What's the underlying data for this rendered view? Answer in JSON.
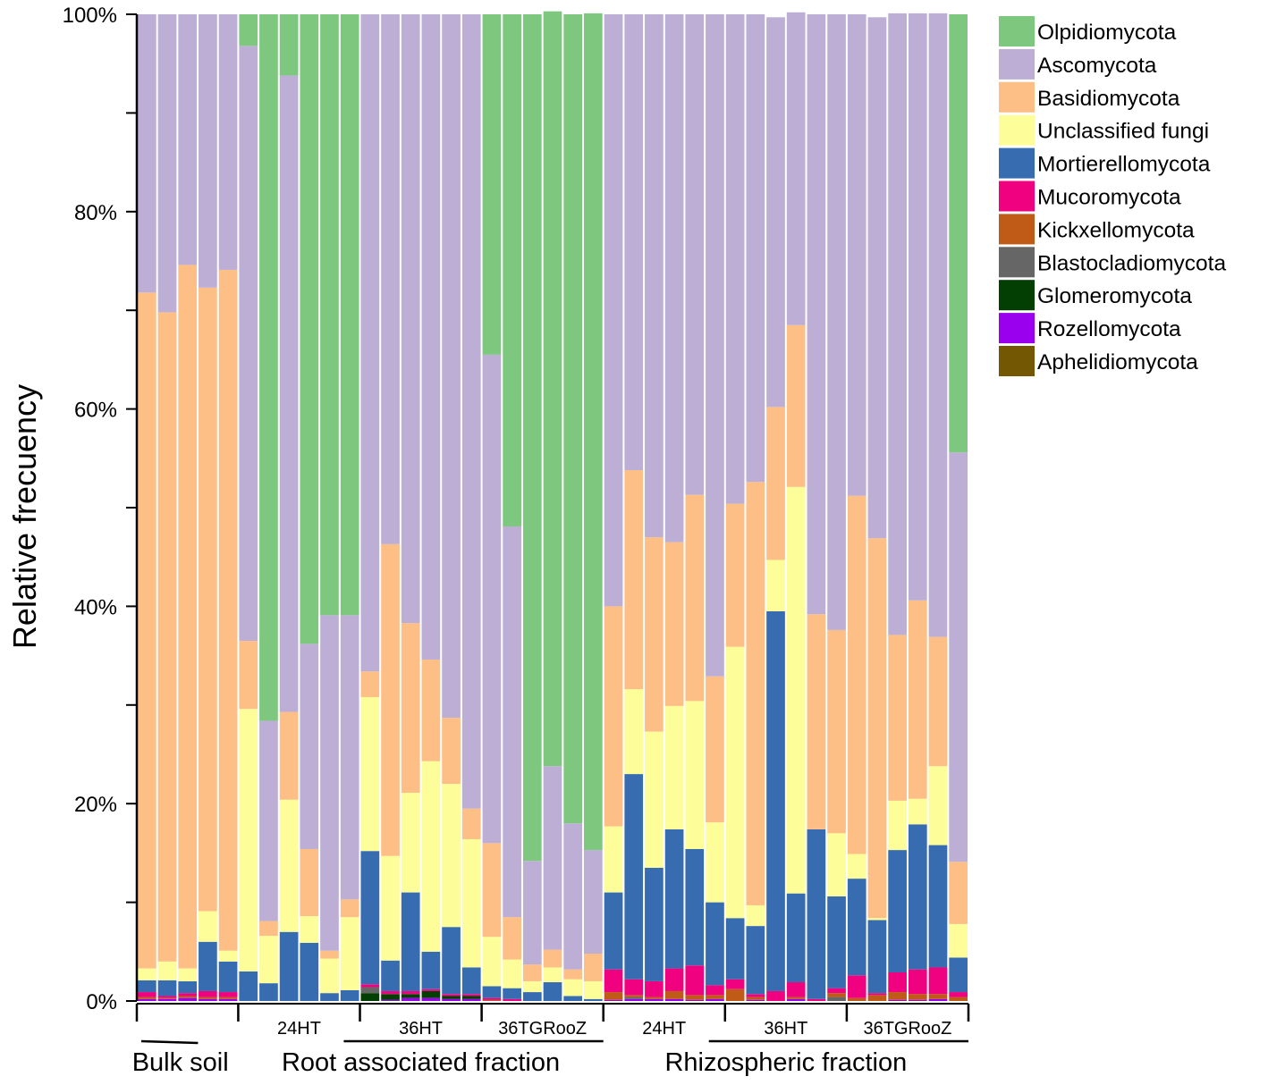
{
  "chart_data": {
    "type": "bar",
    "stacked": true,
    "normalized": true,
    "ylabel": "Relative frecuency",
    "xlabel": "",
    "ylim": [
      0,
      100
    ],
    "yticks": [
      0,
      20,
      40,
      60,
      80,
      100
    ],
    "ytick_labels": [
      "0%",
      "20%",
      "40%",
      "60%",
      "80%",
      "100%"
    ],
    "legend_position": "right",
    "legend": [
      "Olpidiomycota",
      "Ascomycota",
      "Basidiomycota",
      "Unclassified fungi",
      "Mortierellomycota",
      "Mucoromycota",
      "Kickxellomycota",
      "Blastocladiomycota",
      "Glomeromycota",
      "Rozellomycota",
      "Aphelidiomycota"
    ],
    "colors": {
      "Olpidiomycota": "#7ec77e",
      "Ascomycota": "#bcaed5",
      "Basidiomycota": "#fdbf86",
      "Unclassified fungi": "#fdfe99",
      "Mortierellomycota": "#386cb0",
      "Mucoromycota": "#f0017f",
      "Kickxellomycota": "#bf5a17",
      "Blastocladiomycota": "#666666",
      "Glomeromycota": "#033e03",
      "Rozellomycota": "#9a00ee",
      "Aphelidiomycota": "#735702"
    },
    "groups": [
      {
        "label": "",
        "bars": 5
      },
      {
        "label": "24HT",
        "bars": 6
      },
      {
        "label": "36HT",
        "bars": 6
      },
      {
        "label": "36TGRooZ",
        "bars": 6
      },
      {
        "label": "24HT",
        "bars": 6
      },
      {
        "label": "36HT",
        "bars": 6
      },
      {
        "label": "36TGRooZ",
        "bars": 6
      }
    ],
    "sections": [
      {
        "label": "Bulk soil",
        "groups": [
          0
        ]
      },
      {
        "label": "Root associated fraction",
        "groups": [
          1,
          2,
          3
        ]
      },
      {
        "label": "Rhizospheric fraction",
        "groups": [
          4,
          5,
          6
        ]
      }
    ],
    "series": [
      {
        "name": "Aphelidiomycota",
        "values": [
          0,
          0,
          0,
          0,
          0,
          0,
          0,
          0,
          0,
          0,
          0,
          0,
          0,
          0,
          0,
          0,
          0,
          0,
          0,
          0,
          0,
          0,
          0,
          0,
          0,
          0,
          0,
          0,
          0,
          0,
          0,
          0,
          0,
          0,
          0,
          0,
          0,
          0,
          0,
          0,
          0
        ]
      },
      {
        "name": "Rozellomycota",
        "values": [
          0.2,
          0.2,
          0.3,
          0.2,
          0.2,
          0,
          0,
          0,
          0,
          0,
          0,
          0,
          0.1,
          0.3,
          0.3,
          0.2,
          0.2,
          0,
          0,
          0,
          0,
          0,
          0,
          0.1,
          0.2,
          0.2,
          0.2,
          0.1,
          0.2,
          0,
          0.1,
          0,
          0.2,
          0,
          0,
          0,
          0,
          0.1,
          0.1,
          0.2,
          0
        ]
      },
      {
        "name": "Glomeromycota",
        "values": [
          0,
          0,
          0,
          0,
          0,
          0,
          0,
          0,
          0,
          0,
          0,
          0.8,
          0.6,
          0.4,
          0.7,
          0.3,
          0.3,
          0,
          0,
          0,
          0,
          0,
          0,
          0,
          0,
          0,
          0,
          0,
          0,
          0,
          0,
          0,
          0,
          0,
          0,
          0,
          0,
          0,
          0,
          0,
          0
        ]
      },
      {
        "name": "Blastocladiomycota",
        "values": [
          0,
          0,
          0,
          0,
          0,
          0,
          0,
          0,
          0,
          0,
          0,
          0.6,
          0,
          0,
          0,
          0,
          0,
          0,
          0,
          0,
          0,
          0,
          0,
          0,
          0.2,
          0,
          0,
          0,
          0,
          0,
          0,
          0,
          0,
          0,
          0.4,
          0,
          0,
          0,
          0,
          0,
          0
        ]
      },
      {
        "name": "Kickxellomycota",
        "values": [
          0.2,
          0.1,
          0.2,
          0.2,
          0.2,
          0,
          0,
          0,
          0,
          0,
          0,
          0,
          0,
          0,
          0,
          0,
          0,
          0.1,
          0,
          0,
          0,
          0,
          0,
          0.8,
          0.2,
          0.2,
          0.8,
          0.5,
          0.4,
          1.2,
          0.3,
          0,
          0.2,
          0,
          0.4,
          0.3,
          0.6,
          0.8,
          0.6,
          0.5,
          0.4
        ]
      },
      {
        "name": "Mucoromycota",
        "values": [
          0.5,
          0.2,
          0.3,
          0.6,
          0.5,
          0,
          0,
          0,
          0,
          0,
          0,
          0.3,
          0.3,
          0.3,
          0.2,
          0.2,
          0.2,
          0.2,
          0.2,
          0,
          0,
          0,
          0,
          2.3,
          1.6,
          1.6,
          2.3,
          3.0,
          1.0,
          1.0,
          0.3,
          1.0,
          1.5,
          0.2,
          0.5,
          2.3,
          0.2,
          2.0,
          2.5,
          2.7,
          0.5
        ]
      },
      {
        "name": "Mortierellomycota",
        "values": [
          1.2,
          1.6,
          1.2,
          5.0,
          3.1,
          3.0,
          1.8,
          7.0,
          5.9,
          0.8,
          1.1,
          13.5,
          3.1,
          10.0,
          3.8,
          6.8,
          2.7,
          1.2,
          1.1,
          0.9,
          1.9,
          0.5,
          0.2,
          7.8,
          20.8,
          11.5,
          14.1,
          11.8,
          8.4,
          6.2,
          6.9,
          38.5,
          9.0,
          17.2,
          9.3,
          9.8,
          7.4,
          12.4,
          14.7,
          12.4,
          3.5
        ]
      },
      {
        "name": "Unclassified fungi",
        "values": [
          1.2,
          1.9,
          1.3,
          3.1,
          1.1,
          26.6,
          4.8,
          13.4,
          2.7,
          3.5,
          7.4,
          15.6,
          10.6,
          10.1,
          19.3,
          14.5,
          13.0,
          5.0,
          2.9,
          1.1,
          1.5,
          1.7,
          1.8,
          6.7,
          8.6,
          13.8,
          12.5,
          15.0,
          8.1,
          27.5,
          2.1,
          5.2,
          41.2,
          0,
          6.4,
          2.5,
          0.2,
          5.0,
          2.6,
          8.0,
          3.4
        ]
      },
      {
        "name": "Basidiomycota",
        "values": [
          68.5,
          65.8,
          71.3,
          63.2,
          69.0,
          6.9,
          1.5,
          8.9,
          6.8,
          0.8,
          1.8,
          2.6,
          31.6,
          17.2,
          10.3,
          6.7,
          3.1,
          9.5,
          4.3,
          1.7,
          1.8,
          1.0,
          2.8,
          22.3,
          22.2,
          19.7,
          16.6,
          20.9,
          14.8,
          14.5,
          42.9,
          15.5,
          16.4,
          21.8,
          20.6,
          36.3,
          38.5,
          16.8,
          20.1,
          13.1,
          6.3
        ]
      },
      {
        "name": "Ascomycota",
        "values": [
          28.2,
          30.2,
          25.4,
          27.7,
          25.9,
          60.3,
          20.3,
          64.5,
          20.8,
          34.0,
          28.8,
          66.6,
          53.7,
          61.7,
          65.4,
          71.3,
          80.5,
          49.5,
          39.6,
          10.5,
          18.6,
          14.8,
          10.5,
          60.0,
          46.2,
          53.0,
          53.5,
          48.7,
          67.1,
          49.6,
          47.4,
          39.5,
          31.7,
          60.8,
          62.4,
          48.8,
          52.8,
          63.0,
          59.5,
          63.2,
          41.5
        ]
      },
      {
        "name": "Olpidiomycota",
        "values": [
          0,
          0,
          0,
          0,
          0,
          3.2,
          71.6,
          6.2,
          63.8,
          60.9,
          60.9,
          0,
          0,
          0,
          0,
          0,
          0,
          34.5,
          51.9,
          85.8,
          76.5,
          82.0,
          84.8,
          0,
          0,
          0,
          0,
          0,
          0,
          0,
          0,
          0,
          0,
          0,
          0,
          0,
          0,
          0,
          0,
          0,
          44.4
        ]
      }
    ]
  }
}
